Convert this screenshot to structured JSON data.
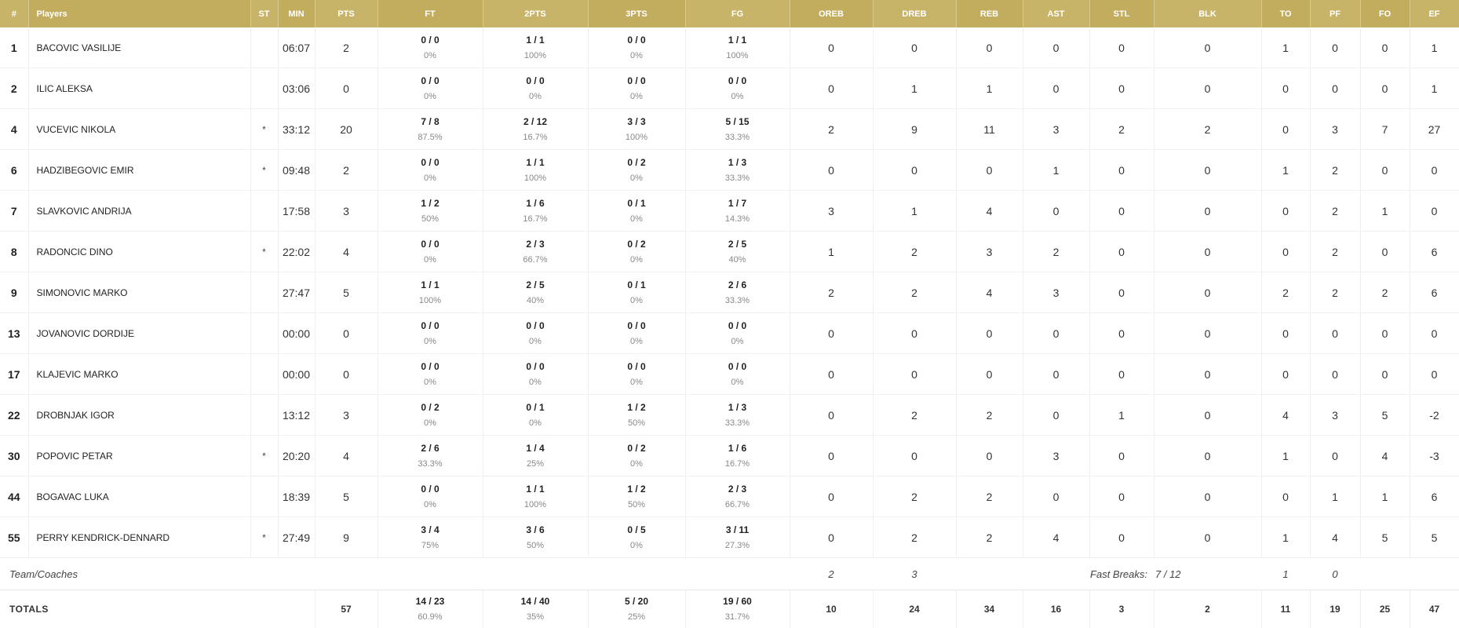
{
  "columns": [
    "#",
    "Players",
    "ST",
    "MIN",
    "PTS",
    "FT",
    "2PTS",
    "3PTS",
    "FG",
    "OREB",
    "DREB",
    "REB",
    "AST",
    "STL",
    "BLK",
    "TO",
    "PF",
    "FO",
    "EF"
  ],
  "players": [
    {
      "num": "1",
      "name": "BACOVIC VASILIJE",
      "st": "",
      "min": "06:07",
      "pts": "2",
      "ft": "0 / 0",
      "ft_pct": "0%",
      "p2": "1 / 1",
      "p2_pct": "100%",
      "p3": "0 / 0",
      "p3_pct": "0%",
      "fg": "1 / 1",
      "fg_pct": "100%",
      "oreb": "0",
      "dreb": "0",
      "reb": "0",
      "ast": "0",
      "stl": "0",
      "blk": "0",
      "to": "1",
      "pf": "0",
      "fo": "0",
      "ef": "1"
    },
    {
      "num": "2",
      "name": "ILIC ALEKSA",
      "st": "",
      "min": "03:06",
      "pts": "0",
      "ft": "0 / 0",
      "ft_pct": "0%",
      "p2": "0 / 0",
      "p2_pct": "0%",
      "p3": "0 / 0",
      "p3_pct": "0%",
      "fg": "0 / 0",
      "fg_pct": "0%",
      "oreb": "0",
      "dreb": "1",
      "reb": "1",
      "ast": "0",
      "stl": "0",
      "blk": "0",
      "to": "0",
      "pf": "0",
      "fo": "0",
      "ef": "1"
    },
    {
      "num": "4",
      "name": "VUCEVIC NIKOLA",
      "st": "*",
      "min": "33:12",
      "pts": "20",
      "ft": "7 / 8",
      "ft_pct": "87.5%",
      "p2": "2 / 12",
      "p2_pct": "16.7%",
      "p3": "3 / 3",
      "p3_pct": "100%",
      "fg": "5 / 15",
      "fg_pct": "33.3%",
      "oreb": "2",
      "dreb": "9",
      "reb": "11",
      "ast": "3",
      "stl": "2",
      "blk": "2",
      "to": "0",
      "pf": "3",
      "fo": "7",
      "ef": "27"
    },
    {
      "num": "6",
      "name": "HADZIBEGOVIC EMIR",
      "st": "*",
      "min": "09:48",
      "pts": "2",
      "ft": "0 / 0",
      "ft_pct": "0%",
      "p2": "1 / 1",
      "p2_pct": "100%",
      "p3": "0 / 2",
      "p3_pct": "0%",
      "fg": "1 / 3",
      "fg_pct": "33.3%",
      "oreb": "0",
      "dreb": "0",
      "reb": "0",
      "ast": "1",
      "stl": "0",
      "blk": "0",
      "to": "1",
      "pf": "2",
      "fo": "0",
      "ef": "0"
    },
    {
      "num": "7",
      "name": "SLAVKOVIC ANDRIJA",
      "st": "",
      "min": "17:58",
      "pts": "3",
      "ft": "1 / 2",
      "ft_pct": "50%",
      "p2": "1 / 6",
      "p2_pct": "16.7%",
      "p3": "0 / 1",
      "p3_pct": "0%",
      "fg": "1 / 7",
      "fg_pct": "14.3%",
      "oreb": "3",
      "dreb": "1",
      "reb": "4",
      "ast": "0",
      "stl": "0",
      "blk": "0",
      "to": "0",
      "pf": "2",
      "fo": "1",
      "ef": "0"
    },
    {
      "num": "8",
      "name": "RADONCIC DINO",
      "st": "*",
      "min": "22:02",
      "pts": "4",
      "ft": "0 / 0",
      "ft_pct": "0%",
      "p2": "2 / 3",
      "p2_pct": "66.7%",
      "p3": "0 / 2",
      "p3_pct": "0%",
      "fg": "2 / 5",
      "fg_pct": "40%",
      "oreb": "1",
      "dreb": "2",
      "reb": "3",
      "ast": "2",
      "stl": "0",
      "blk": "0",
      "to": "0",
      "pf": "2",
      "fo": "0",
      "ef": "6"
    },
    {
      "num": "9",
      "name": "SIMONOVIC MARKO",
      "st": "",
      "min": "27:47",
      "pts": "5",
      "ft": "1 / 1",
      "ft_pct": "100%",
      "p2": "2 / 5",
      "p2_pct": "40%",
      "p3": "0 / 1",
      "p3_pct": "0%",
      "fg": "2 / 6",
      "fg_pct": "33.3%",
      "oreb": "2",
      "dreb": "2",
      "reb": "4",
      "ast": "3",
      "stl": "0",
      "blk": "0",
      "to": "2",
      "pf": "2",
      "fo": "2",
      "ef": "6"
    },
    {
      "num": "13",
      "name": "JOVANOVIC DORDIJE",
      "st": "",
      "min": "00:00",
      "pts": "0",
      "ft": "0 / 0",
      "ft_pct": "0%",
      "p2": "0 / 0",
      "p2_pct": "0%",
      "p3": "0 / 0",
      "p3_pct": "0%",
      "fg": "0 / 0",
      "fg_pct": "0%",
      "oreb": "0",
      "dreb": "0",
      "reb": "0",
      "ast": "0",
      "stl": "0",
      "blk": "0",
      "to": "0",
      "pf": "0",
      "fo": "0",
      "ef": "0"
    },
    {
      "num": "17",
      "name": "KLAJEVIC MARKO",
      "st": "",
      "min": "00:00",
      "pts": "0",
      "ft": "0 / 0",
      "ft_pct": "0%",
      "p2": "0 / 0",
      "p2_pct": "0%",
      "p3": "0 / 0",
      "p3_pct": "0%",
      "fg": "0 / 0",
      "fg_pct": "0%",
      "oreb": "0",
      "dreb": "0",
      "reb": "0",
      "ast": "0",
      "stl": "0",
      "blk": "0",
      "to": "0",
      "pf": "0",
      "fo": "0",
      "ef": "0"
    },
    {
      "num": "22",
      "name": "DROBNJAK IGOR",
      "st": "",
      "min": "13:12",
      "pts": "3",
      "ft": "0 / 2",
      "ft_pct": "0%",
      "p2": "0 / 1",
      "p2_pct": "0%",
      "p3": "1 / 2",
      "p3_pct": "50%",
      "fg": "1 / 3",
      "fg_pct": "33.3%",
      "oreb": "0",
      "dreb": "2",
      "reb": "2",
      "ast": "0",
      "stl": "1",
      "blk": "0",
      "to": "4",
      "pf": "3",
      "fo": "5",
      "ef": "-2"
    },
    {
      "num": "30",
      "name": "POPOVIC PETAR",
      "st": "*",
      "min": "20:20",
      "pts": "4",
      "ft": "2 / 6",
      "ft_pct": "33.3%",
      "p2": "1 / 4",
      "p2_pct": "25%",
      "p3": "0 / 2",
      "p3_pct": "0%",
      "fg": "1 / 6",
      "fg_pct": "16.7%",
      "oreb": "0",
      "dreb": "0",
      "reb": "0",
      "ast": "3",
      "stl": "0",
      "blk": "0",
      "to": "1",
      "pf": "0",
      "fo": "4",
      "ef": "-3"
    },
    {
      "num": "44",
      "name": "BOGAVAC LUKA",
      "st": "",
      "min": "18:39",
      "pts": "5",
      "ft": "0 / 0",
      "ft_pct": "0%",
      "p2": "1 / 1",
      "p2_pct": "100%",
      "p3": "1 / 2",
      "p3_pct": "50%",
      "fg": "2 / 3",
      "fg_pct": "66.7%",
      "oreb": "0",
      "dreb": "2",
      "reb": "2",
      "ast": "0",
      "stl": "0",
      "blk": "0",
      "to": "0",
      "pf": "1",
      "fo": "1",
      "ef": "6"
    },
    {
      "num": "55",
      "name": "PERRY KENDRICK-DENNARD",
      "st": "*",
      "min": "27:49",
      "pts": "9",
      "ft": "3 / 4",
      "ft_pct": "75%",
      "p2": "3 / 6",
      "p2_pct": "50%",
      "p3": "0 / 5",
      "p3_pct": "0%",
      "fg": "3 / 11",
      "fg_pct": "27.3%",
      "oreb": "0",
      "dreb": "2",
      "reb": "2",
      "ast": "4",
      "stl": "0",
      "blk": "0",
      "to": "1",
      "pf": "4",
      "fo": "5",
      "ef": "5"
    }
  ],
  "team": {
    "label": "Team/Coaches",
    "oreb": "2",
    "dreb": "3",
    "fast_breaks_label": "Fast Breaks:",
    "fast_breaks_value": "7 / 12",
    "to": "1",
    "pf": "0"
  },
  "totals": {
    "label": "TOTALS",
    "pts": "57",
    "ft": "14 / 23",
    "ft_pct": "60.9%",
    "p2": "14 / 40",
    "p2_pct": "35%",
    "p3": "5 / 20",
    "p3_pct": "25%",
    "fg": "19 / 60",
    "fg_pct": "31.7%",
    "oreb": "10",
    "dreb": "24",
    "reb": "34",
    "ast": "16",
    "stl": "3",
    "blk": "2",
    "to": "11",
    "pf": "19",
    "fo": "25",
    "ef": "47"
  },
  "colors": {
    "header_bg": "#c8b468",
    "header_text": "#ffffff"
  }
}
